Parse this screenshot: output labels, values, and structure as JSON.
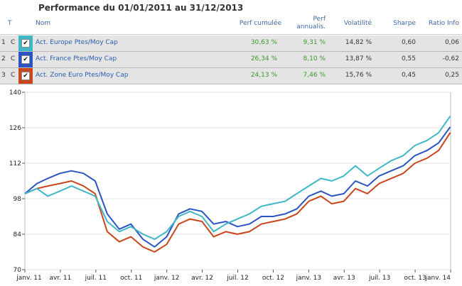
{
  "title": "Performance du 01/01/2011 au 31/12/2013",
  "table": {
    "headers": {
      "t": "T",
      "nom": "Nom",
      "perf_cumulee": "Perf cumulée",
      "perf_annualis_1": "Perf",
      "perf_annualis_2": "annualis.",
      "volatilite": "Volatilité",
      "sharpe": "Sharpe",
      "ratio_info": "Ratio Info"
    },
    "rows": [
      {
        "index": "1",
        "type": "C",
        "name": "Act. Europe Ptes/Moy Cap",
        "perf_cumulee": "30,63 %",
        "perf_annualisee": "9,31 %",
        "volatilite": "14,82 %",
        "sharpe": "0,60",
        "ratio_info": "0,06",
        "color": "#40b7c7"
      },
      {
        "index": "2",
        "type": "C",
        "name": "Act. France Ptes/Moy Cap",
        "perf_cumulee": "26,34 %",
        "perf_annualisee": "8,10 %",
        "volatilite": "13,87 %",
        "sharpe": "0,55",
        "ratio_info": "-0,62",
        "color": "#2b55c4"
      },
      {
        "index": "3",
        "type": "C",
        "name": "Act. Zone Euro Ptes/Moy Cap",
        "perf_cumulee": "24,13 %",
        "perf_annualisee": "7,46 %",
        "volatilite": "15,76 %",
        "sharpe": "0,45",
        "ratio_info": "0,25",
        "color": "#c8461a"
      }
    ]
  },
  "chart_data": {
    "type": "line",
    "title": "",
    "xlabel": "",
    "ylabel": "",
    "ylim": [
      70,
      140
    ],
    "yticks": [
      70,
      84,
      98,
      112,
      126,
      140
    ],
    "xlim": [
      "2011-01-01",
      "2014-01-01"
    ],
    "xticks": [
      "janv. 11",
      "avr. 11",
      "juil. 11",
      "oct. 11",
      "janv. 12",
      "avr. 12",
      "juil. 12",
      "oct. 12",
      "janv. 13",
      "avr. 13",
      "juil. 13",
      "oct. 13",
      "janv. 14"
    ],
    "grid": true,
    "x": [
      "2011-01-01",
      "2011-02-01",
      "2011-03-01",
      "2011-04-01",
      "2011-05-01",
      "2011-06-01",
      "2011-07-01",
      "2011-08-01",
      "2011-09-01",
      "2011-10-01",
      "2011-11-01",
      "2011-12-01",
      "2012-01-01",
      "2012-02-01",
      "2012-03-01",
      "2012-04-01",
      "2012-05-01",
      "2012-06-01",
      "2012-07-01",
      "2012-08-01",
      "2012-09-01",
      "2012-10-01",
      "2012-11-01",
      "2012-12-01",
      "2013-01-01",
      "2013-02-01",
      "2013-03-01",
      "2013-04-01",
      "2013-05-01",
      "2013-06-01",
      "2013-07-01",
      "2013-08-01",
      "2013-09-01",
      "2013-10-01",
      "2013-11-01",
      "2013-12-01",
      "2013-12-31"
    ],
    "series": [
      {
        "name": "Act. Europe Ptes/Moy Cap",
        "color": "#40b7c7",
        "values": [
          100,
          102,
          99,
          101,
          103,
          101,
          99,
          89,
          85,
          87,
          84,
          82,
          85,
          91,
          93,
          91,
          85,
          88,
          90,
          92,
          95,
          96,
          97,
          100,
          103,
          106,
          105,
          107,
          111,
          107,
          110,
          113,
          115,
          119,
          121,
          124,
          130.6
        ]
      },
      {
        "name": "Act. France Ptes/Moy Cap",
        "color": "#2b55c4",
        "values": [
          100,
          104,
          106,
          108,
          109,
          108,
          105,
          92,
          86,
          88,
          82,
          79,
          83,
          92,
          94,
          93,
          88,
          89,
          87,
          88,
          91,
          91,
          92,
          94,
          99,
          101,
          99,
          100,
          105,
          103,
          107,
          109,
          111,
          115,
          117,
          120,
          126.3
        ]
      },
      {
        "name": "Act. Zone Euro Ptes/Moy Cap",
        "color": "#c8461a",
        "values": [
          100,
          102,
          103,
          104,
          105,
          103,
          100,
          85,
          81,
          83,
          79,
          77,
          80,
          88,
          90,
          89,
          83,
          85,
          84,
          85,
          88,
          89,
          90,
          92,
          97,
          99,
          96,
          97,
          102,
          100,
          104,
          106,
          108,
          112,
          114,
          117,
          124.1
        ]
      }
    ]
  }
}
